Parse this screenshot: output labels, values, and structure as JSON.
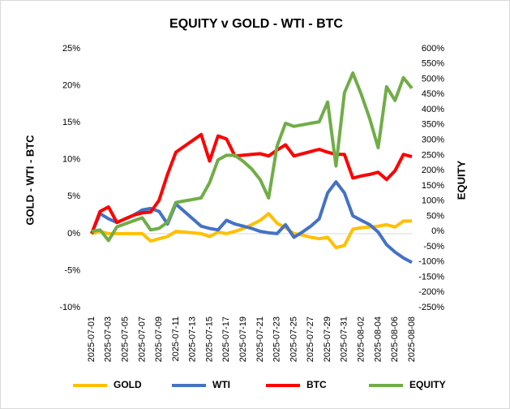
{
  "chart_data": {
    "type": "line",
    "title": "EQUITY  v  GOLD - WTI - BTC",
    "y_label": "GOLD - WTI - BTC",
    "y2_label": "EQUITY",
    "categories": [
      "2025-07-01",
      null,
      "2025-07-03",
      null,
      "2025-07-05",
      null,
      "2025-07-07",
      null,
      "2025-07-09",
      null,
      "2025-07-11",
      null,
      "2025-07-13",
      null,
      "2025-07-15",
      null,
      "2025-07-17",
      null,
      "2025-07-19",
      null,
      "2025-07-21",
      null,
      "2025-07-23",
      null,
      "2025-07-25",
      null,
      "2025-07-27",
      null,
      "2025-07-29",
      null,
      "2025-07-31",
      null,
      "2025-08-02",
      null,
      "2025-08-04",
      null,
      "2025-08-06",
      null,
      "2025-08-08"
    ],
    "series": [
      {
        "name": "GOLD",
        "color": "#ffc000",
        "values": [
          0,
          0.3,
          0,
          0,
          0,
          0,
          0,
          -1.0,
          -0.7,
          -0.4,
          0.3,
          0.2,
          0.1,
          0,
          -0.4,
          0.2,
          0,
          0.3,
          0.7,
          1.2,
          1.8,
          2.7,
          1.4,
          0.8,
          0,
          -0.2,
          -0.5,
          -0.7,
          -0.5,
          -1.9,
          -1.6,
          0.6,
          0.8,
          0.9,
          1.0,
          1.2,
          0.9,
          1.7,
          1.7
        ]
      },
      {
        "name": "WTI",
        "color": "#4472c4",
        "values": [
          0,
          2.7,
          2.0,
          1.5,
          2.0,
          2.5,
          3.2,
          3.4,
          3.0,
          1.3,
          4.0,
          3.0,
          2.0,
          1.0,
          0.7,
          0.5,
          1.8,
          1.3,
          1.0,
          0.7,
          0.3,
          0.1,
          0,
          1.2,
          -0.5,
          0.2,
          1.0,
          2.0,
          5.5,
          7.0,
          5.5,
          2.4,
          1.8,
          1.2,
          0.2,
          -1.5,
          -2.5,
          -3.3,
          -3.9
        ]
      },
      {
        "name": "BTC",
        "color": "#ff0000",
        "values": [
          0,
          3.0,
          3.6,
          1.5,
          2.0,
          2.5,
          2.8,
          2.9,
          4.5,
          8.0,
          11.0,
          11.8,
          12.6,
          13.4,
          9.8,
          13.2,
          12.8,
          10.5,
          10.6,
          10.7,
          10.8,
          10.5,
          11.3,
          12.0,
          10.5,
          10.8,
          11.1,
          11.4,
          11.0,
          10.7,
          10.7,
          7.5,
          7.8,
          8.0,
          8.3,
          7.3,
          8.5,
          10.7,
          10.4
        ]
      },
      {
        "name": "EQUITY",
        "color": "#70ad47",
        "axis": "y2",
        "values": [
          0,
          5,
          -30,
          15,
          25,
          35,
          45,
          5,
          10,
          30,
          95,
          100,
          105,
          110,
          160,
          235,
          250,
          250,
          230,
          205,
          170,
          110,
          280,
          355,
          345,
          350,
          355,
          360,
          425,
          215,
          455,
          520,
          450,
          370,
          275,
          475,
          430,
          505,
          470
        ]
      }
    ],
    "ylim": [
      -10,
      25
    ],
    "yticks": [
      {
        "value": -10,
        "label": "-10%"
      },
      {
        "value": -5,
        "label": "-5%"
      },
      {
        "value": 0,
        "label": "0%"
      },
      {
        "value": 5,
        "label": "5%"
      },
      {
        "value": 10,
        "label": "10%"
      },
      {
        "value": 15,
        "label": "15%"
      },
      {
        "value": 20,
        "label": "20%"
      },
      {
        "value": 25,
        "label": "25%"
      }
    ],
    "y2lim": [
      -250,
      600
    ],
    "y2ticks": [
      {
        "value": -250,
        "label": "-250%"
      },
      {
        "value": -200,
        "label": "-200%"
      },
      {
        "value": -150,
        "label": "-150%"
      },
      {
        "value": -100,
        "label": "-100%"
      },
      {
        "value": -50,
        "label": "-50%"
      },
      {
        "value": 0,
        "label": "0%"
      },
      {
        "value": 50,
        "label": "50%"
      },
      {
        "value": 100,
        "label": "100%"
      },
      {
        "value": 150,
        "label": "150%"
      },
      {
        "value": 200,
        "label": "200%"
      },
      {
        "value": 250,
        "label": "250%"
      },
      {
        "value": 300,
        "label": "300%"
      },
      {
        "value": 350,
        "label": "350%"
      },
      {
        "value": 400,
        "label": "400%"
      },
      {
        "value": 450,
        "label": "450%"
      },
      {
        "value": 500,
        "label": "500%"
      },
      {
        "value": 550,
        "label": "550%"
      },
      {
        "value": 600,
        "label": "600%"
      }
    ],
    "grid": false,
    "legend": "bottom"
  }
}
